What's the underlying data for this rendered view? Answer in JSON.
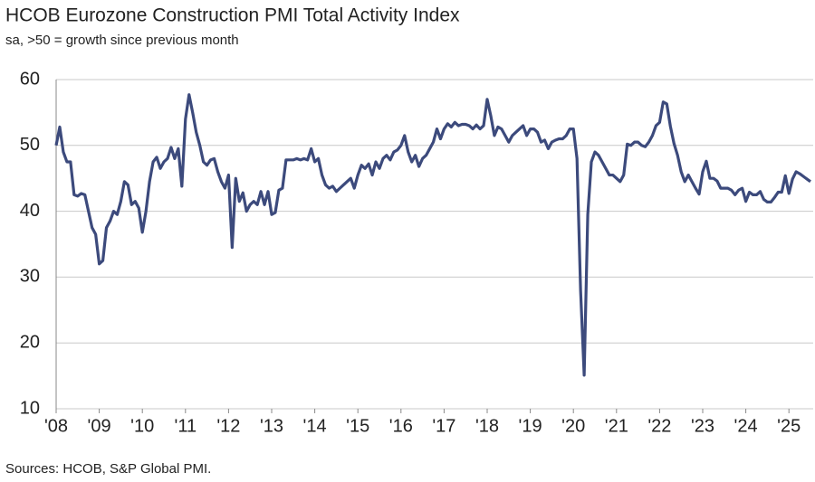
{
  "chart_data": {
    "type": "line",
    "title": "HCOB Eurozone Construction PMI Total Activity Index",
    "subtitle": "sa, >50 = growth  since previous month",
    "source": "Sources: HCOB,  S&P Global  PMI.",
    "color": "#3c4a7c",
    "grid": true,
    "x": [
      0,
      1,
      2,
      3,
      4,
      5,
      6,
      7,
      8,
      9,
      10,
      11,
      12,
      13,
      14,
      15,
      16,
      17,
      18,
      19,
      20,
      21,
      22,
      23,
      24,
      25,
      26,
      27,
      28,
      29,
      30,
      31,
      32,
      33,
      34,
      35,
      36,
      37,
      38,
      39,
      40,
      41,
      42,
      43,
      44,
      45,
      46,
      47,
      48,
      49,
      50,
      51,
      52,
      53,
      54,
      55,
      56,
      57,
      58,
      59,
      60,
      61,
      62,
      63,
      64,
      65,
      66,
      67,
      68,
      69,
      70,
      71,
      72,
      73,
      74,
      75,
      76,
      77,
      78,
      79,
      80,
      81,
      82,
      83,
      84,
      85,
      86,
      87,
      88,
      89,
      90,
      91,
      92,
      93,
      94,
      95,
      96,
      97,
      98,
      99,
      100,
      101,
      102,
      103,
      104,
      105,
      106,
      107,
      108,
      109,
      110,
      111,
      112,
      113,
      114,
      115,
      116,
      117,
      118,
      119,
      120,
      121,
      122,
      123,
      124,
      125,
      126,
      127,
      128,
      129,
      130,
      131,
      132,
      133,
      134,
      135,
      136,
      137,
      138,
      139,
      140,
      141,
      142,
      143,
      144,
      145,
      146,
      147,
      148,
      149,
      150,
      151,
      152,
      153,
      154,
      155,
      156,
      157,
      158,
      159,
      160,
      161,
      162,
      163,
      164,
      165,
      166,
      167,
      168,
      169,
      170,
      171,
      172,
      173,
      174,
      175,
      176,
      177,
      178,
      179,
      180,
      181,
      182,
      183,
      184,
      185,
      186,
      187,
      188,
      189,
      190,
      191,
      192,
      193,
      194,
      195,
      196,
      197,
      198,
      199,
      200,
      201,
      202,
      203,
      204,
      205,
      206,
      207,
      208,
      209,
      210
    ],
    "values": [
      50,
      52.8,
      49,
      47.5,
      47.5,
      42.5,
      42.3,
      42.7,
      42.5,
      40,
      37.5,
      36.5,
      32,
      32.5,
      37.5,
      38.5,
      40,
      39.5,
      41.5,
      44.5,
      44,
      41,
      41.5,
      40.5,
      36.8,
      40,
      44.5,
      47.5,
      48.2,
      46.5,
      47.5,
      48,
      49.7,
      48,
      49.5,
      43.8,
      54,
      57.7,
      55,
      52,
      50,
      47.5,
      47,
      47.8,
      48,
      46,
      44.5,
      43.5,
      45.5,
      34.5,
      45,
      41.5,
      42.8,
      40,
      41,
      41.5,
      41,
      43,
      41,
      43,
      39.5,
      39.8,
      43.2,
      43.5,
      47.8,
      47.8,
      47.8,
      48,
      47.8,
      48,
      47.8,
      49.5,
      47.5,
      48,
      45.5,
      44,
      43.5,
      43.8,
      43,
      43.5,
      44,
      44.5,
      45,
      43.5,
      45.5,
      47,
      46.5,
      47.2,
      45.5,
      47.5,
      46.5,
      48,
      48.5,
      47.8,
      49,
      49.3,
      50,
      51.5,
      49,
      47.5,
      48.5,
      46.8,
      48,
      48.5,
      49.5,
      50.5,
      52.5,
      51,
      52.5,
      53.3,
      52.8,
      53.5,
      53,
      53.2,
      53.2,
      53,
      52.5,
      53.1,
      52.5,
      53,
      57,
      54.5,
      51.5,
      52.8,
      52.5,
      51.5,
      50.5,
      51.5,
      52,
      52.5,
      53,
      51.5,
      52.5,
      52.5,
      52,
      50.5,
      50.8,
      49.5,
      50.5,
      50.8,
      51,
      51,
      51.5,
      52.5,
      52.5,
      48,
      28,
      15.1,
      39.5,
      47.5,
      49,
      48.5,
      47.5,
      46.5,
      45.5,
      45.5,
      45,
      44.5,
      45.5,
      50.2,
      50,
      50.5,
      50.5,
      50,
      49.8,
      50.5,
      51.5,
      53,
      53.5,
      56.6,
      56.3,
      52.9,
      50.3,
      48.5,
      46,
      44.5,
      45.5,
      44.5,
      43.5,
      42.6,
      46,
      47.6,
      45,
      45,
      44.6,
      43.5,
      43.5,
      43.5,
      43.2,
      42.5,
      43.2,
      43.5,
      41.5,
      42.9,
      42.5,
      42.5,
      43,
      41.8,
      41.4,
      41.4,
      42.1,
      42.9,
      42.9,
      45.4,
      42.7,
      44.9,
      46,
      45.7,
      45.3,
      44.9,
      44.5
    ],
    "xlim": [
      0,
      210
    ],
    "ylim": [
      10,
      60
    ],
    "yticks": [
      10,
      20,
      30,
      40,
      50,
      60
    ],
    "xticks": [
      {
        "value": 0,
        "label": "'08"
      },
      {
        "value": 12,
        "label": "'09"
      },
      {
        "value": 24,
        "label": "'10"
      },
      {
        "value": 36,
        "label": "'11"
      },
      {
        "value": 48,
        "label": "'12"
      },
      {
        "value": 60,
        "label": "'13"
      },
      {
        "value": 72,
        "label": "'14"
      },
      {
        "value": 84,
        "label": "'15"
      },
      {
        "value": 96,
        "label": "'16"
      },
      {
        "value": 108,
        "label": "'17"
      },
      {
        "value": 120,
        "label": "'18"
      },
      {
        "value": 132,
        "label": "'19"
      },
      {
        "value": 144,
        "label": "'20"
      },
      {
        "value": 156,
        "label": "'21"
      },
      {
        "value": 168,
        "label": "'22"
      },
      {
        "value": 180,
        "label": "'23"
      },
      {
        "value": 192,
        "label": "'24"
      },
      {
        "value": 204,
        "label": "'25"
      }
    ]
  }
}
